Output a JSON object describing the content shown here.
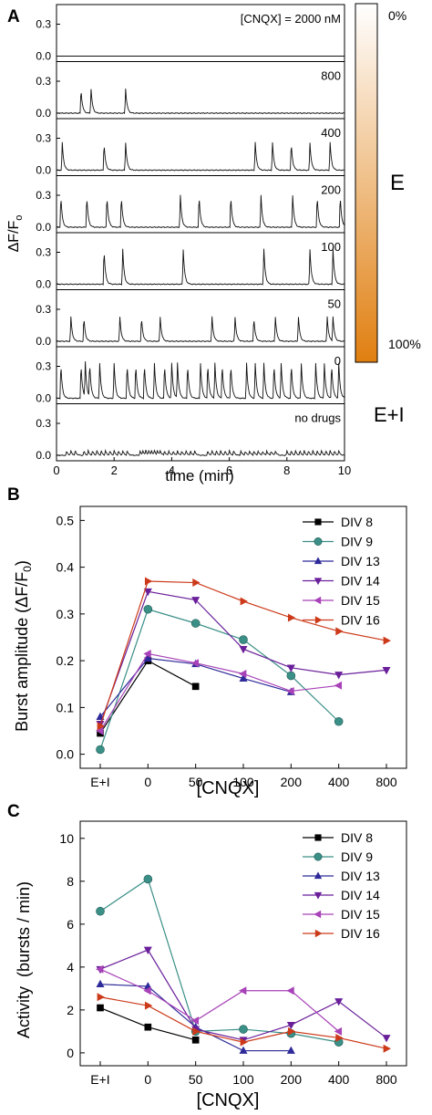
{
  "chart_data": [
    {
      "panel": "A",
      "type": "line",
      "xlabel": "time (min)",
      "ylabel": "ΔF/F",
      "ylabel_sub": "o",
      "x_ticks": [
        0,
        2,
        4,
        6,
        8,
        10
      ],
      "y_ticks": [
        0.0,
        0.3
      ],
      "xlim": [
        0,
        10
      ],
      "ylim": [
        0,
        0.45
      ],
      "traces": [
        {
          "label": "[CNQX] = 2000 nM",
          "baseline": 0.0,
          "amplitude": 0.0,
          "peak_times": []
        },
        {
          "label": "800",
          "baseline": 0.0,
          "amplitude": 0.23,
          "peak_times": [
            0.85,
            1.2,
            2.4
          ]
        },
        {
          "label": "400",
          "baseline": 0.0,
          "amplitude": 0.26,
          "peak_times": [
            0.2,
            1.65,
            2.4,
            6.9,
            7.5,
            8.15,
            8.8,
            9.5
          ]
        },
        {
          "label": "200",
          "baseline": 0.0,
          "amplitude": 0.3,
          "peak_times": [
            0.15,
            1.05,
            1.75,
            2.25,
            4.3,
            4.95,
            6.05,
            7.1,
            8.2,
            9.05,
            9.85
          ]
        },
        {
          "label": "100",
          "baseline": 0.0,
          "amplitude": 0.33,
          "peak_times": [
            1.65,
            2.3,
            4.4,
            7.2,
            8.8,
            9.6
          ]
        },
        {
          "label": "50",
          "baseline": 0.0,
          "amplitude": 0.23,
          "peak_times": [
            0.5,
            0.95,
            2.2,
            2.95,
            3.6,
            5.4,
            6.2,
            6.85,
            7.6,
            8.4,
            9.4,
            9.6
          ]
        },
        {
          "label": "0",
          "baseline": 0.0,
          "amplitude": 0.33,
          "peak_times": [
            0.15,
            0.85,
            1.0,
            1.15,
            1.5,
            2.0,
            2.45,
            2.75,
            3.05,
            3.4,
            3.75,
            4.0,
            4.2,
            4.55,
            5.0,
            5.25,
            5.5,
            5.75,
            6.05,
            6.6,
            6.9,
            7.2,
            7.55,
            7.8,
            8.15,
            8.5,
            9.0,
            9.3,
            9.55,
            9.8
          ]
        },
        {
          "label": "no drugs",
          "baseline": 0.0,
          "amplitude": 0.04,
          "peak_times": [
            0.35,
            0.5,
            0.65,
            0.95,
            1.1,
            1.25,
            1.4,
            1.55,
            1.7,
            1.85,
            2.0,
            2.15,
            2.3,
            2.45,
            2.9,
            3.0,
            3.1,
            3.2,
            3.3,
            3.4,
            3.5,
            3.6,
            3.75,
            3.9,
            4.05,
            4.2,
            4.35,
            4.5,
            4.65,
            4.8,
            5.25,
            5.4,
            5.55,
            5.7,
            5.85,
            6.0,
            6.15,
            6.4,
            6.55,
            6.7,
            6.85,
            7.0,
            7.15,
            7.3,
            7.45,
            7.6,
            8.0,
            8.15,
            8.3,
            8.45,
            8.6,
            8.75,
            8.9,
            9.05,
            9.2,
            9.35,
            9.5,
            9.65,
            9.8
          ]
        }
      ],
      "colorbar": {
        "top_label": "0%",
        "bottom_label": "100%",
        "side_label": "E",
        "bottom_side_label": "E+I",
        "color_start": "#ffffff",
        "color_end": "#e07f10"
      }
    },
    {
      "panel": "B",
      "type": "line",
      "xlabel": "[CNQX]",
      "ylabel": "Burst amplitude (ΔF/F",
      "ylabel_sub": "0",
      "ylabel_end": ")",
      "categories": [
        "E+I",
        "0",
        "50",
        "100",
        "200",
        "400",
        "800"
      ],
      "y_ticks": [
        0.0,
        0.1,
        0.2,
        0.3,
        0.4,
        0.5
      ],
      "ylim": [
        -0.03,
        0.53
      ],
      "legend": "top-right",
      "series": [
        {
          "name": "DIV 8",
          "color": "#000000",
          "marker": "square",
          "values": [
            0.045,
            0.2,
            0.145,
            null,
            null,
            null,
            null
          ]
        },
        {
          "name": "DIV 9",
          "color": "#3a8f86",
          "marker": "circle",
          "values": [
            0.01,
            0.31,
            0.28,
            0.245,
            0.168,
            0.07,
            null
          ]
        },
        {
          "name": "DIV 13",
          "color": "#2e2a99",
          "marker": "tri-up",
          "values": [
            0.08,
            0.205,
            0.193,
            0.162,
            0.133,
            null,
            null
          ]
        },
        {
          "name": "DIV 14",
          "color": "#6a1f9a",
          "marker": "tri-down",
          "values": [
            0.065,
            0.348,
            0.33,
            0.225,
            0.185,
            0.17,
            0.18
          ]
        },
        {
          "name": "DIV 15",
          "color": "#a842b8",
          "marker": "tri-left",
          "values": [
            0.05,
            0.215,
            0.195,
            0.172,
            0.135,
            0.147,
            null
          ]
        },
        {
          "name": "DIV 16",
          "color": "#cc3a1a",
          "marker": "tri-right",
          "values": [
            0.06,
            0.37,
            0.367,
            0.327,
            0.292,
            0.263,
            0.243
          ]
        }
      ]
    },
    {
      "panel": "C",
      "type": "line",
      "xlabel": "[CNQX]",
      "ylabel": "Activity  (bursts / min)",
      "categories": [
        "E+I",
        "0",
        "50",
        "100",
        "200",
        "400",
        "800"
      ],
      "y_ticks": [
        0,
        2,
        4,
        6,
        8,
        10
      ],
      "ylim": [
        -0.6,
        10.8
      ],
      "legend": "top-right",
      "series": [
        {
          "name": "DIV 8",
          "color": "#000000",
          "marker": "square",
          "values": [
            2.1,
            1.2,
            0.6,
            null,
            null,
            null,
            null
          ]
        },
        {
          "name": "DIV 9",
          "color": "#3a8f86",
          "marker": "circle",
          "values": [
            6.6,
            8.1,
            1.0,
            1.1,
            0.9,
            0.5,
            null
          ]
        },
        {
          "name": "DIV 13",
          "color": "#2e2a99",
          "marker": "tri-up",
          "values": [
            3.2,
            3.1,
            1.2,
            0.1,
            0.1,
            null,
            null
          ]
        },
        {
          "name": "DIV 14",
          "color": "#6a1f9a",
          "marker": "tri-down",
          "values": [
            3.9,
            4.8,
            1.1,
            0.6,
            1.3,
            2.4,
            0.7
          ]
        },
        {
          "name": "DIV 15",
          "color": "#a842b8",
          "marker": "tri-left",
          "values": [
            3.9,
            2.9,
            1.5,
            2.9,
            2.9,
            1.0,
            null
          ]
        },
        {
          "name": "DIV 16",
          "color": "#cc3a1a",
          "marker": "tri-right",
          "values": [
            2.6,
            2.2,
            1.0,
            0.5,
            1.0,
            0.7,
            0.2
          ]
        }
      ]
    }
  ],
  "panels": {
    "a": "A",
    "b": "B",
    "c": "C"
  }
}
